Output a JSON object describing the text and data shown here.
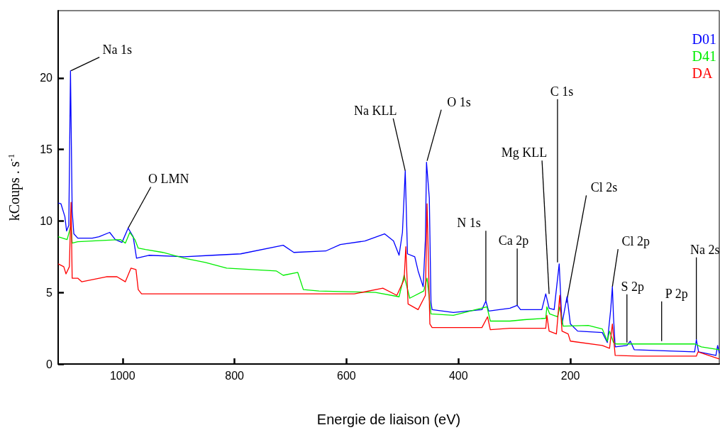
{
  "chart_data": {
    "type": "line",
    "xlabel": "Energie de liaison (eV)",
    "ylabel": "kCoups . s$^{-1}$",
    "xlim": [
      1115,
      -66
    ],
    "xticks": [
      1000,
      800,
      600,
      400,
      200
    ],
    "ylim": [
      0,
      24.7
    ],
    "yticks": [
      0,
      5,
      10,
      15,
      20
    ],
    "grid": false,
    "legend": "top right",
    "marker": "none",
    "line_style": "solid",
    "series": [
      {
        "name": "D01",
        "color": "#0000ff",
        "x": [
          1115,
          1110,
          1103,
          1100,
          1096,
          1093,
          1090,
          1087,
          1080,
          1054,
          1042,
          1023,
          1013,
          1001,
          990,
          981,
          975,
          953,
          890,
          839,
          789,
          713,
          694,
          637,
          611,
          567,
          532,
          516,
          506,
          500,
          495,
          491,
          478,
          472,
          463,
          459,
          457,
          452,
          449,
          447,
          409,
          358,
          351,
          346,
          308,
          295,
          289,
          251,
          244,
          238,
          229,
          220,
          215,
          206,
          200,
          187,
          143,
          134,
          128,
          125,
          123,
          120,
          99,
          93,
          86,
          -22,
          -25,
          -29,
          -60,
          -63,
          -66
        ],
        "values": [
          11.25,
          11.2,
          10.3,
          9.3,
          9.7,
          20.5,
          10.7,
          9.1,
          8.8,
          8.8,
          8.9,
          9.2,
          8.7,
          8.5,
          9.5,
          8.9,
          7.4,
          7.6,
          7.5,
          7.6,
          7.7,
          8.3,
          7.8,
          7.9,
          8.35,
          8.6,
          9.1,
          8.6,
          7.6,
          9.2,
          13.5,
          7.7,
          7.5,
          6.5,
          5.4,
          8.7,
          14.1,
          11.6,
          4.3,
          3.8,
          3.6,
          3.8,
          4.4,
          3.7,
          3.9,
          4.1,
          3.8,
          3.8,
          4.9,
          3.9,
          3.8,
          7.0,
          2.8,
          4.7,
          2.8,
          2.3,
          2.2,
          1.5,
          3.8,
          5.4,
          3.3,
          1.2,
          1.3,
          1.6,
          1.0,
          0.85,
          1.7,
          0.85,
          0.6,
          1.3,
          0.75
        ]
      },
      {
        "name": "D41",
        "color": "#00ee00",
        "x": [
          1115,
          1099,
          1092,
          1090,
          1080,
          1004,
          995,
          987,
          978,
          972,
          959,
          928,
          890,
          852,
          814,
          725,
          713,
          687,
          677,
          649,
          548,
          506,
          497,
          487,
          462,
          456,
          449,
          409,
          349,
          343,
          308,
          282,
          244,
          242,
          237,
          223,
          219,
          213,
          168,
          143,
          134,
          130,
          123,
          118,
          80,
          -22,
          -34,
          -66
        ],
        "values": [
          8.9,
          8.7,
          9.7,
          8.45,
          8.55,
          8.7,
          8.45,
          9.2,
          8.7,
          8.1,
          8.0,
          7.8,
          7.4,
          7.1,
          6.7,
          6.5,
          6.2,
          6.4,
          5.2,
          5.1,
          5.0,
          4.7,
          6.2,
          4.6,
          5.1,
          6.0,
          3.5,
          3.4,
          4.0,
          3.0,
          3.0,
          3.1,
          3.2,
          4.0,
          3.5,
          3.3,
          4.0,
          2.65,
          2.7,
          2.45,
          1.6,
          2.3,
          1.5,
          1.4,
          1.4,
          1.4,
          1.2,
          1.0
        ]
      },
      {
        "name": "DA",
        "color": "#ff0000",
        "x": [
          1115,
          1105,
          1101,
          1095,
          1092,
          1090,
          1080,
          1073,
          1029,
          1010,
          995,
          985,
          976,
          972,
          966,
          839,
          713,
          586,
          535,
          510,
          497,
          494,
          490,
          472,
          459,
          456,
          451,
          447,
          358,
          348,
          343,
          308,
          244,
          242,
          238,
          225,
          219,
          215,
          204,
          200,
          143,
          130,
          125,
          120,
          80,
          -25,
          -28,
          -66
        ],
        "values": [
          7.0,
          6.8,
          6.3,
          6.8,
          11.3,
          6.0,
          6.0,
          5.75,
          6.1,
          6.1,
          5.75,
          6.7,
          6.6,
          5.2,
          4.9,
          4.9,
          4.9,
          4.9,
          5.3,
          4.8,
          5.9,
          8.2,
          4.2,
          3.8,
          4.8,
          11.2,
          2.8,
          2.55,
          2.55,
          3.3,
          2.4,
          2.5,
          2.5,
          3.4,
          2.3,
          2.1,
          4.8,
          2.3,
          2.1,
          1.6,
          1.3,
          1.1,
          2.8,
          0.6,
          0.55,
          0.55,
          0.85,
          0.35
        ]
      }
    ],
    "annotations": [
      {
        "text": "Na 1s",
        "x": 1092,
        "y": 20.5
      },
      {
        "text": "O LMN",
        "x": 990,
        "y": 9.5
      },
      {
        "text": "Na KLL",
        "x": 495,
        "y": 13.5
      },
      {
        "text": "O 1s",
        "x": 456,
        "y": 14.2
      },
      {
        "text": "N 1s",
        "x": 351,
        "y": 4.4
      },
      {
        "text": "Ca 2p",
        "x": 295,
        "y": 4.1
      },
      {
        "text": "Mg KLL",
        "x": 238,
        "y": 4.9
      },
      {
        "text": "C 1s",
        "x": 223,
        "y": 7.1
      },
      {
        "text": "Cl 2s",
        "x": 207,
        "y": 4.3
      },
      {
        "text": "Cl 2p",
        "x": 125,
        "y": 5.4
      },
      {
        "text": "S 2p",
        "x": 99,
        "y": 1.5
      },
      {
        "text": "P 2p",
        "x": 37,
        "y": 1.6
      },
      {
        "text": "Na 2s",
        "x": -25,
        "y": 1.7
      }
    ]
  }
}
